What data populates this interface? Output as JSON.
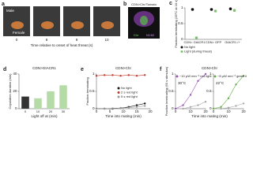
{
  "figure": {
    "a": {
      "letter": "a",
      "male": "Male",
      "female": "Female",
      "times": [
        "0",
        "8",
        "9",
        "10"
      ],
      "xlabel": "Time relative to onset of heat threat (s)"
    },
    "b": {
      "letter": "b",
      "title": "CDN>Chr/Tomato",
      "channels": [
        "Chr",
        "NC82"
      ]
    }
  },
  "chart_data": [
    {
      "type": "dot",
      "panel": "c",
      "ylabel": "Fraction terminating (33°C at 10 s)",
      "categories": [
        "CDN> GtACR1",
        "CDN> GFP",
        "GtACR1 /+"
      ],
      "series": [
        {
          "name": "No light",
          "color": "#111111",
          "values": [
            0.95,
            0.95,
            0.97
          ]
        },
        {
          "name": "Light (during threat)",
          "color": "#7cc36b",
          "values": [
            0.05,
            0.9,
            0.92
          ]
        }
      ],
      "ylim": [
        0,
        1
      ],
      "yticks": [
        0,
        0.5,
        1
      ],
      "legend": "lower center"
    },
    {
      "type": "bar",
      "panel": "d",
      "title": "CDN>GtACR1",
      "ylabel": "Copulation duration (min)",
      "xlabel": "Light off at (min)",
      "categories": [
        "0",
        "10",
        "20",
        "30"
      ],
      "values": [
        14,
        12,
        20,
        27
      ],
      "colors": [
        "#333333",
        "#b5dca6",
        "#b5dca6",
        "#b5dca6"
      ],
      "ylim": [
        0,
        40
      ],
      "yticks": [
        0,
        20,
        40
      ]
    },
    {
      "type": "line",
      "panel": "e",
      "title": "CDN>Chr",
      "ylabel": "Fraction terminating",
      "xlabel": "Time into mating (min)",
      "x": [
        0,
        3,
        6,
        9,
        12,
        15,
        18
      ],
      "series": [
        {
          "name": "No light",
          "color": "#111111",
          "values": [
            0,
            0,
            0,
            0.02,
            0.05,
            0.1,
            0.15
          ]
        },
        {
          "name": "2 s red light",
          "color": "#c0392b",
          "values": [
            0.95,
            0.97,
            0.97,
            0.95,
            0.97,
            0.95,
            0.97
          ]
        },
        {
          "name": "5 s red light",
          "color": "#999999",
          "values": [
            0,
            0,
            0.01,
            0.02,
            0.03,
            0.05,
            0.08
          ]
        }
      ],
      "xlim": [
        0,
        20
      ],
      "xticks": [
        0,
        5,
        10,
        15,
        20
      ],
      "ylim": [
        0,
        1
      ],
      "yticks": [
        0,
        0.5,
        1
      ],
      "legend": "center right"
    },
    {
      "type": "line",
      "panel": "f",
      "title": "CDN>Chr",
      "ylabel": "Fraction terminating (60 s stimulus)",
      "xlabel": "Time into mating (min)",
      "x": [
        0,
        5,
        10,
        15,
        20
      ],
      "series": [
        {
          "color": "#aaaaaa",
          "values": [
            0,
            0,
            0.05,
            0.1,
            0.2
          ]
        },
        {
          "name": "~10 μW mm⁻² red light",
          "color": "#9b59b6",
          "values": [
            0,
            0.1,
            0.4,
            0.8,
            1
          ]
        }
      ],
      "annotation": "30°C",
      "xlim": [
        0,
        20
      ],
      "xticks": [
        0,
        10,
        20
      ],
      "ylim": [
        0,
        1
      ],
      "yticks": [
        0,
        0.5,
        1
      ],
      "legend": "upper left"
    },
    {
      "type": "line",
      "x": [
        0,
        5,
        10,
        15,
        20
      ],
      "series": [
        {
          "color": "#aaaaaa",
          "values": [
            0,
            0,
            0.03,
            0.08,
            0.15
          ]
        },
        {
          "name": "~8 μW mm⁻² green light",
          "color": "#6ab04c",
          "values": [
            0,
            0.05,
            0.3,
            0.7,
            0.95
          ]
        }
      ],
      "annotation": "22°C",
      "xlim": [
        0,
        20
      ],
      "xticks": [
        0,
        10,
        20
      ],
      "ylim": [
        0,
        1
      ],
      "yticks": [
        0,
        0.5,
        1
      ],
      "legend": "upper left"
    }
  ]
}
